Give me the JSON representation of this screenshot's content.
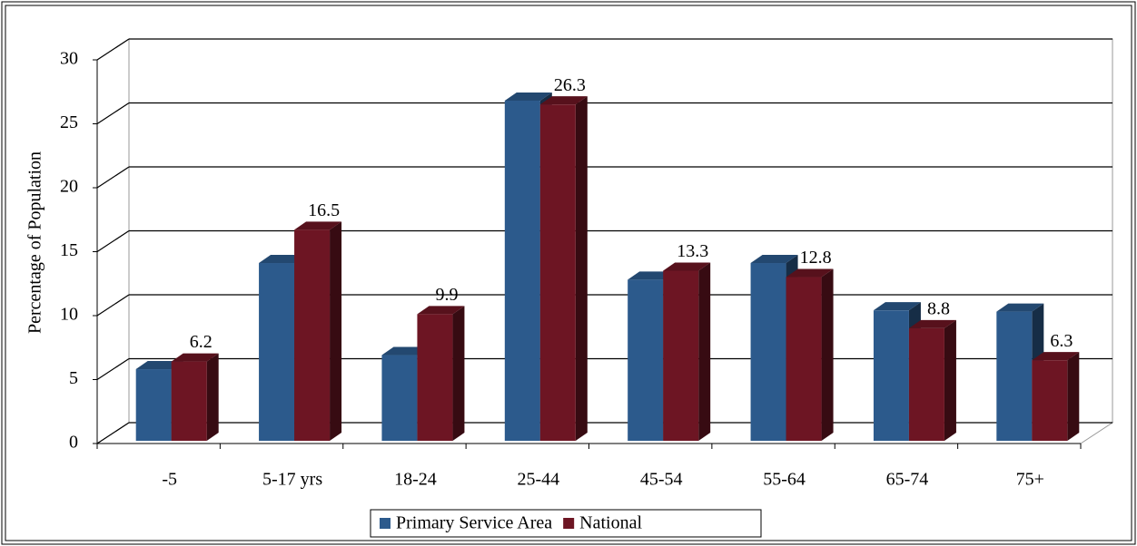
{
  "chart_data": {
    "type": "bar3d",
    "y_label": "Percentage of Population",
    "categories": [
      "-5",
      "5-17 yrs",
      "18-24",
      "25-44",
      "45-54",
      "55-64",
      "65-74",
      "75+"
    ],
    "series": [
      {
        "name": "Primary Service Area",
        "color": "#2c5a8c",
        "values": [
          5.6,
          13.9,
          6.7,
          26.6,
          12.6,
          13.9,
          10.2,
          10.1
        ]
      },
      {
        "name": "National",
        "color": "#6d1523",
        "values": [
          6.2,
          16.5,
          9.9,
          26.3,
          13.3,
          12.8,
          8.8,
          6.3
        ],
        "labels": true
      }
    ],
    "ylim": [
      0,
      30
    ],
    "yticks": [
      0,
      5,
      10,
      15,
      20,
      25,
      30
    ],
    "grid": true
  }
}
